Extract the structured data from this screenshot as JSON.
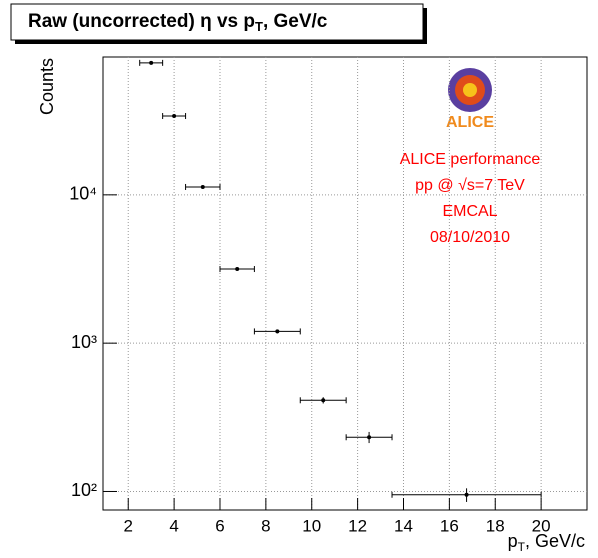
{
  "chart_data": {
    "type": "errorbar",
    "title": [
      "Raw (uncorrected) η vs p",
      "T",
      ", GeV/c"
    ],
    "x_label": [
      "p",
      "T",
      ", GeV/c"
    ],
    "y_label": "Counts",
    "logo_text": "ALICE",
    "annotations": [
      "ALICE performance",
      "pp @ √s=7 TeV",
      "EMCAL",
      "08/10/2010"
    ],
    "x": [
      3,
      4,
      5.25,
      6.75,
      8.5,
      10.5,
      12.5,
      16.75
    ],
    "x_errors": [
      0.5,
      0.5,
      0.75,
      0.75,
      1,
      1,
      1,
      3.25
    ],
    "values": [
      77600,
      34000,
      11300,
      3160,
      1200,
      412,
      232,
      95
    ],
    "errors": [
      300,
      200,
      110,
      60,
      35,
      20,
      20,
      10
    ],
    "color": "#000000",
    "xlim": [
      0.9,
      22
    ],
    "xticks": [
      2,
      4,
      6,
      8,
      10,
      12,
      14,
      16,
      18,
      20
    ],
    "ylim": [
      75,
      85000
    ],
    "yticks": [
      {
        "value": 100,
        "label": "10²"
      },
      {
        "value": 1000,
        "label": "10³"
      },
      {
        "value": 10000,
        "label": "10⁴"
      }
    ],
    "y_log": true,
    "grid": true
  }
}
